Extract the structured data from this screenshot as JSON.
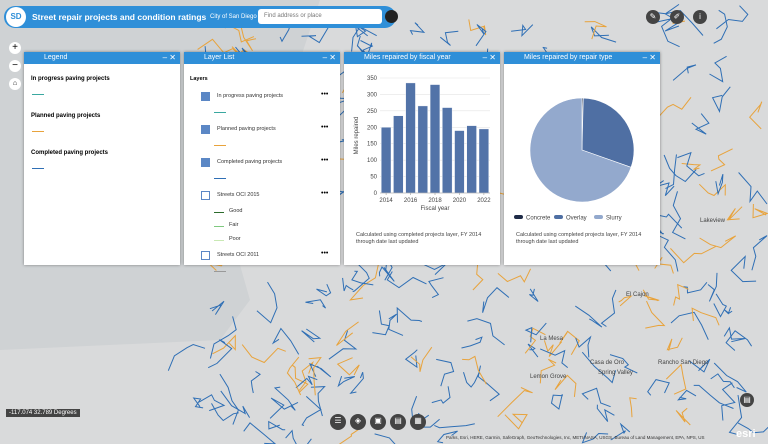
{
  "header": {
    "logo": "SD",
    "title": "Street repair projects and condition ratings",
    "subtitle": "City of San Diego",
    "search_placeholder": "Find address or place"
  },
  "legend_panel": {
    "title": "Legend",
    "items": [
      {
        "label": "In progress paving projects",
        "color": "#3aa8a0"
      },
      {
        "label": "Planned paving projects",
        "color": "#e8a33c"
      },
      {
        "label": "Completed paving projects",
        "color": "#2f6fb5"
      }
    ]
  },
  "layer_list": {
    "title": "Layer List",
    "heading": "Layers",
    "layers": [
      {
        "name": "In progress paving projects",
        "checked": true
      },
      {
        "name": "Planned paving projects",
        "checked": true
      },
      {
        "name": "Completed paving projects",
        "checked": true
      },
      {
        "name": "Streets OCI 2015",
        "checked": false,
        "legend": [
          {
            "label": "Good",
            "color": "#2c6b2c"
          },
          {
            "label": "Fair",
            "color": "#7fc97f"
          },
          {
            "label": "Poor",
            "color": "#c9e9b4"
          }
        ]
      },
      {
        "name": "Streets OCI 2011",
        "checked": false
      }
    ]
  },
  "chart_data": [
    {
      "type": "bar",
      "title": "Miles repaired by fiscal year",
      "x_label": "Fiscal year",
      "y_label": "Miles repaired",
      "x": [
        2014,
        2015,
        2016,
        2017,
        2018,
        2019,
        2020,
        2021,
        2022
      ],
      "values": [
        200,
        235,
        335,
        265,
        330,
        260,
        190,
        205,
        195
      ],
      "color": "#5273a8",
      "xlim": [
        2013.5,
        2022.5
      ],
      "xticks": [
        2014,
        2016,
        2018,
        2020,
        2022
      ],
      "ylim": [
        0,
        350
      ],
      "yticks": [
        0,
        50,
        100,
        150,
        200,
        250,
        300,
        350
      ],
      "grid": true,
      "caption": "Calculated using completed projects layer, FY 2014 through date last updated"
    },
    {
      "type": "pie",
      "title": "Miles repaired by repair type",
      "categories": [
        "Concrete",
        "Overlay",
        "Slurry"
      ],
      "values": [
        0.4,
        30,
        69.6
      ],
      "colors": [
        "#1f2b47",
        "#4f6fa3",
        "#93a9cd"
      ],
      "caption": "Calculated using completed projects layer, FY 2014 through date last updated"
    }
  ],
  "map": {
    "places": [
      {
        "name": "Lakeview",
        "x": 700,
        "y": 222
      },
      {
        "name": "El Cajon",
        "x": 626,
        "y": 296
      },
      {
        "name": "La Mesa",
        "x": 540,
        "y": 340
      },
      {
        "name": "Casa de Oro",
        "x": 590,
        "y": 364
      },
      {
        "name": "Spring Valley",
        "x": 598,
        "y": 374
      },
      {
        "name": "Lemon Grove",
        "x": 530,
        "y": 378
      },
      {
        "name": "Rancho San Diego",
        "x": 658,
        "y": 364
      }
    ],
    "coordinates": "-117.074 32.789 Degrees",
    "attribution": "Parks, Esri, HERE, Garmin, SafeGraph, GeoTechnologies, Inc, METI/NASA, USGS, Bureau of Land Management, EPA, NPS, US"
  }
}
